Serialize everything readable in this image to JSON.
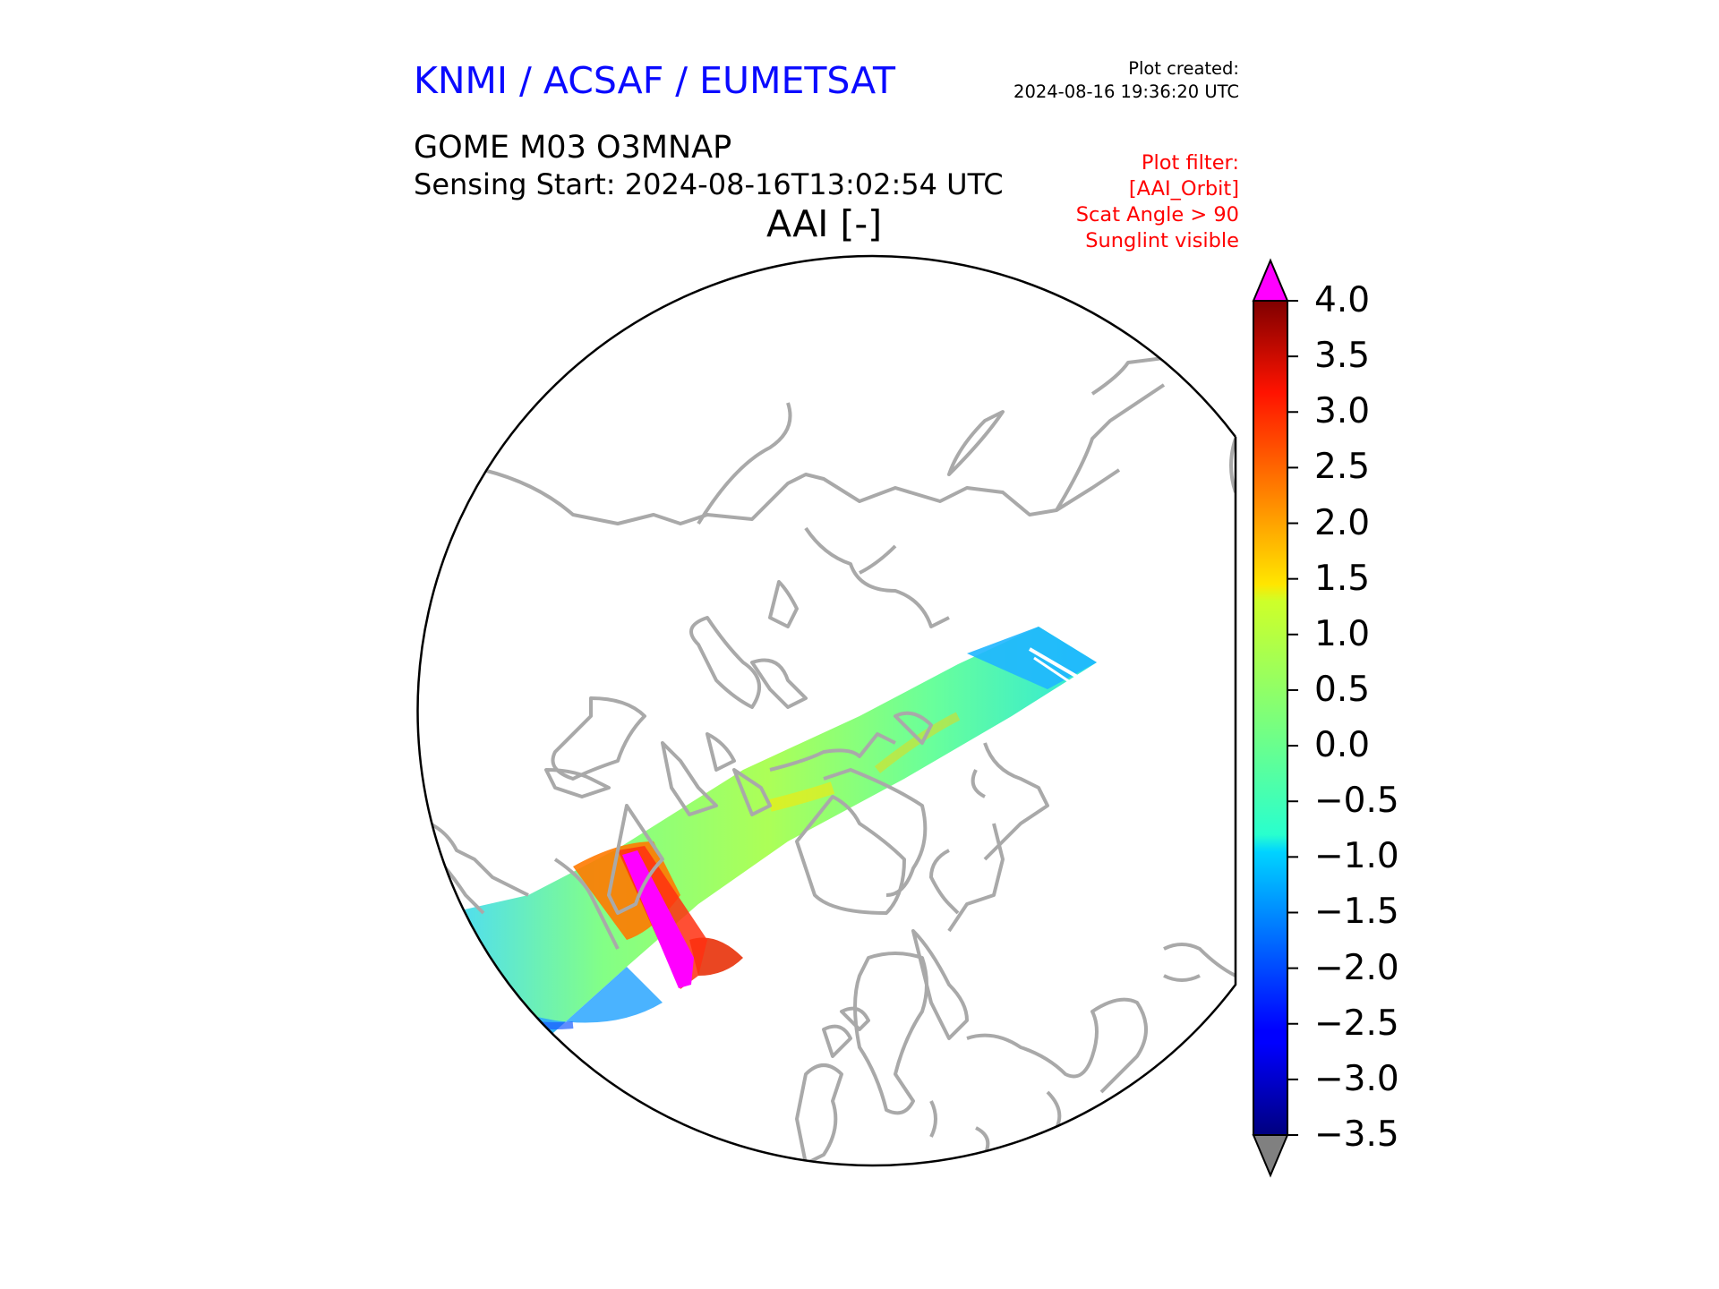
{
  "header": {
    "organization": "KNMI / ACSAF / EUMETSAT",
    "plot_created_label": "Plot created:",
    "plot_created_time": "2024-08-16 19:36:20 UTC",
    "product": "GOME M03 O3MNAP",
    "sensing_start": "Sensing Start: 2024-08-16T13:02:54 UTC",
    "variable": "AAI [-]"
  },
  "plot_filter": {
    "label": "Plot filter:",
    "lines": [
      "[AAI_Orbit]",
      "Scat Angle > 90",
      "Sunglint visible"
    ]
  },
  "map": {
    "projection": "north-polar stereographic",
    "coastline_color": "#a9a9a9",
    "boundary_color": "#000000"
  },
  "colorbar": {
    "colormap": "jet",
    "min": -3.5,
    "max": 4.0,
    "ticks": [
      "4.0",
      "3.5",
      "3.0",
      "2.5",
      "2.0",
      "1.5",
      "1.0",
      "0.5",
      "0.0",
      "−0.5",
      "−1.0",
      "−1.5",
      "−2.0",
      "−2.5",
      "−3.0",
      "−3.5"
    ],
    "over_color": "#ff00ff",
    "under_color": "#808080"
  }
}
